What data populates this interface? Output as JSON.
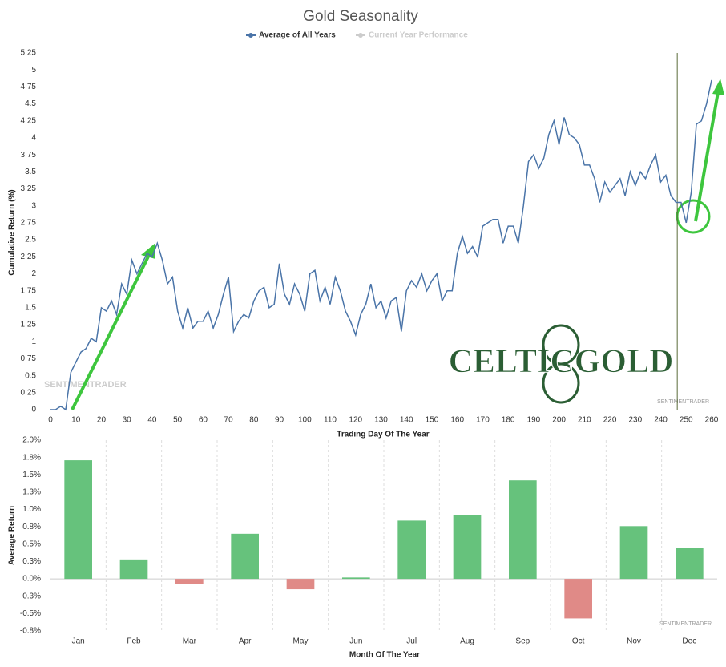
{
  "chart_data": [
    {
      "type": "line",
      "title": "Gold Seasonality",
      "ylabel": "Cumulative Return (%)",
      "xlabel": "Trading Day Of The Year",
      "x": [
        0,
        2,
        4,
        6,
        8,
        10,
        12,
        14,
        16,
        18,
        20,
        22,
        24,
        26,
        28,
        30,
        32,
        34,
        36,
        38,
        40,
        42,
        44,
        46,
        48,
        50,
        52,
        54,
        56,
        58,
        60,
        62,
        64,
        66,
        68,
        70,
        72,
        74,
        76,
        78,
        80,
        82,
        84,
        86,
        88,
        90,
        92,
        94,
        96,
        98,
        100,
        102,
        104,
        106,
        108,
        110,
        112,
        114,
        116,
        118,
        120,
        122,
        124,
        126,
        128,
        130,
        132,
        134,
        136,
        138,
        140,
        142,
        144,
        146,
        148,
        150,
        152,
        154,
        156,
        158,
        160,
        162,
        164,
        166,
        168,
        170,
        172,
        174,
        176,
        178,
        180,
        182,
        184,
        186,
        188,
        190,
        192,
        194,
        196,
        198,
        200,
        202,
        204,
        206,
        208,
        210,
        212,
        214,
        216,
        218,
        220,
        222,
        224,
        226,
        228,
        230,
        232,
        234,
        236,
        238,
        240,
        242,
        244,
        246,
        248,
        250,
        252,
        254,
        256,
        258,
        260
      ],
      "series": [
        {
          "name": "Average of All Years",
          "color": "#4a74a8",
          "values": [
            0,
            0,
            0.05,
            0,
            0.55,
            0.7,
            0.85,
            0.9,
            1.05,
            1.0,
            1.5,
            1.45,
            1.6,
            1.4,
            1.85,
            1.7,
            2.2,
            2.0,
            2.15,
            2.3,
            2.25,
            2.45,
            2.2,
            1.85,
            1.95,
            1.45,
            1.2,
            1.5,
            1.2,
            1.3,
            1.3,
            1.45,
            1.2,
            1.4,
            1.7,
            1.95,
            1.15,
            1.3,
            1.4,
            1.35,
            1.6,
            1.75,
            1.8,
            1.5,
            1.55,
            2.15,
            1.7,
            1.55,
            1.85,
            1.7,
            1.45,
            2.0,
            2.05,
            1.6,
            1.8,
            1.55,
            1.95,
            1.75,
            1.45,
            1.3,
            1.1,
            1.4,
            1.55,
            1.85,
            1.5,
            1.6,
            1.35,
            1.6,
            1.65,
            1.15,
            1.75,
            1.9,
            1.8,
            2.0,
            1.75,
            1.9,
            2.0,
            1.6,
            1.75,
            1.75,
            2.3,
            2.55,
            2.3,
            2.4,
            2.25,
            2.7,
            2.75,
            2.8,
            2.8,
            2.45,
            2.7,
            2.7,
            2.45,
            3.0,
            3.65,
            3.75,
            3.55,
            3.7,
            4.05,
            4.25,
            3.9,
            4.3,
            4.05,
            4.0,
            3.9,
            3.6,
            3.6,
            3.4,
            3.05,
            3.35,
            3.2,
            3.3,
            3.4,
            3.15,
            3.5,
            3.3,
            3.5,
            3.4,
            3.6,
            3.75,
            3.35,
            3.45,
            3.15,
            3.05,
            3.05,
            2.75,
            3.2,
            4.2,
            4.25,
            4.5,
            4.85
          ]
        }
      ],
      "hidden_series": [
        {
          "name": "Current Year Performance",
          "color": "#cccccc"
        }
      ],
      "marker_x": 246.5,
      "xlim": [
        0,
        260
      ],
      "xticks": [
        0,
        10,
        20,
        30,
        40,
        50,
        60,
        70,
        80,
        90,
        100,
        110,
        120,
        130,
        140,
        150,
        160,
        170,
        180,
        190,
        200,
        210,
        220,
        230,
        240,
        250,
        260
      ],
      "ylim": [
        0,
        5.25
      ],
      "yticks": [
        0,
        0.25,
        0.5,
        0.75,
        1,
        1.25,
        1.5,
        1.75,
        2,
        2.25,
        2.5,
        2.75,
        3,
        3.25,
        3.5,
        3.75,
        4,
        4.25,
        4.5,
        4.75,
        5,
        5.25
      ],
      "grid": false,
      "logo_text": "CELTICGOLD",
      "watermark": "SENTIMENTRADER"
    },
    {
      "type": "bar",
      "ylabel": "Average Return",
      "xlabel": "Month Of The Year",
      "categories": [
        "Jan",
        "Feb",
        "Mar",
        "Apr",
        "May",
        "Jun",
        "Jul",
        "Aug",
        "Sep",
        "Oct",
        "Nov",
        "Dec"
      ],
      "values": [
        1.71,
        0.28,
        -0.07,
        0.65,
        -0.15,
        0.02,
        0.84,
        0.92,
        1.42,
        -0.57,
        0.76,
        0.45
      ],
      "colors": [
        "#66c27c",
        "#66c27c",
        "#e08a87",
        "#66c27c",
        "#e08a87",
        "#66c27c",
        "#66c27c",
        "#66c27c",
        "#66c27c",
        "#e08a87",
        "#66c27c",
        "#66c27c"
      ],
      "ylim": [
        -0.75,
        2.0
      ],
      "yticks": [
        {
          "value": 2.0,
          "label": "2.0%"
        },
        {
          "value": 1.75,
          "label": "1.8%"
        },
        {
          "value": 1.5,
          "label": "1.5%"
        },
        {
          "value": 1.25,
          "label": "1.3%"
        },
        {
          "value": 1.0,
          "label": "1.0%"
        },
        {
          "value": 0.75,
          "label": "0.8%"
        },
        {
          "value": 0.5,
          "label": "0.5%"
        },
        {
          "value": 0.25,
          "label": "0.3%"
        },
        {
          "value": 0,
          "label": "0.0%"
        },
        {
          "value": -0.25,
          "label": "-0.3%"
        },
        {
          "value": -0.5,
          "label": "-0.5%"
        },
        {
          "value": -0.75,
          "label": "-0.8%"
        }
      ],
      "watermark": "SENTIMENTRADER"
    }
  ]
}
